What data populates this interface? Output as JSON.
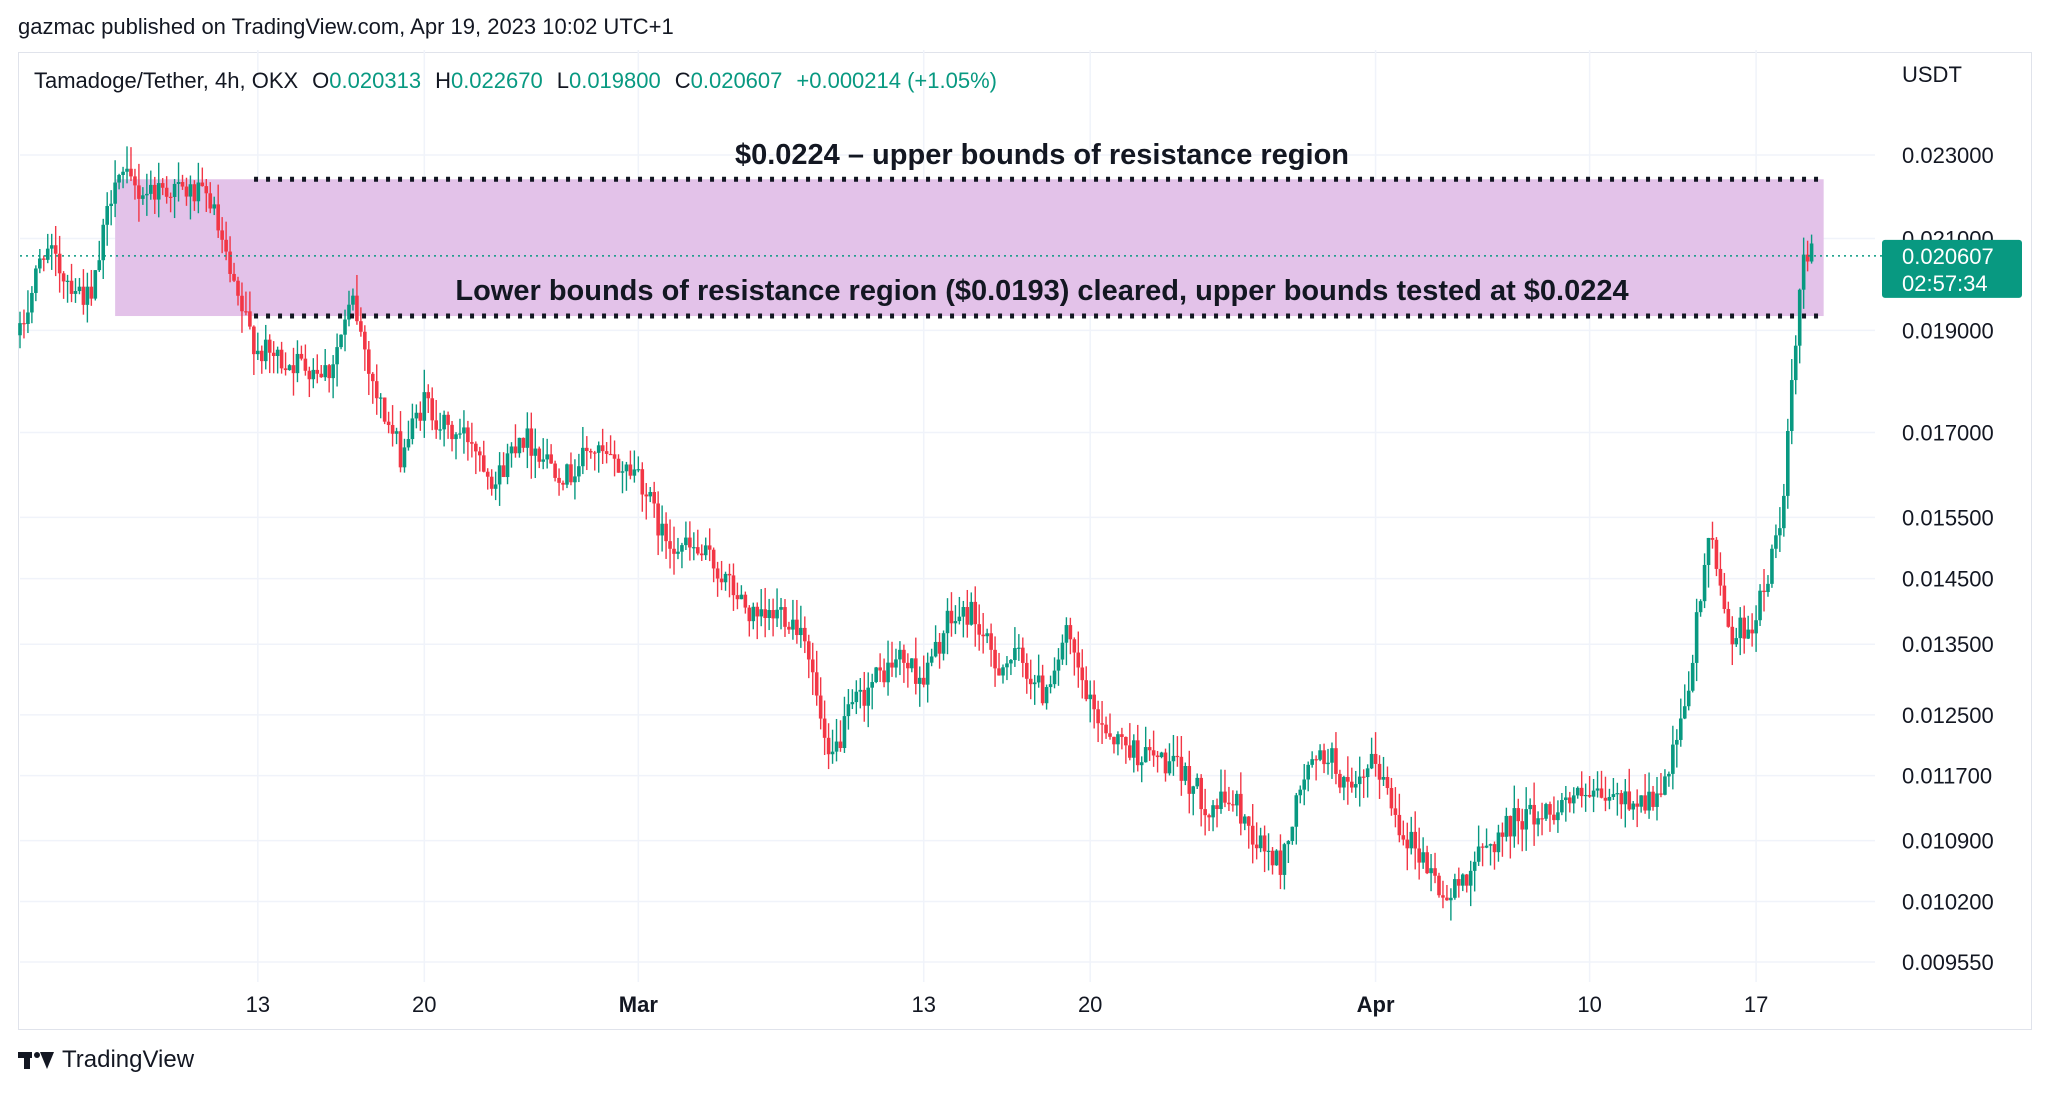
{
  "header": {
    "publisher": "gazmac published on TradingView.com, Apr 19, 2023 10:02 UTC+1"
  },
  "legend": {
    "symbol": "Tamadoge/Tether, 4h, OKX",
    "open_label": "O",
    "open": "0.020313",
    "high_label": "H",
    "high": "0.022670",
    "low_label": "L",
    "low": "0.019800",
    "close_label": "C",
    "close": "0.020607",
    "change": "+0.000214 (+1.05%)"
  },
  "price_axis": {
    "currency": "USDT",
    "last_price": "0.020607",
    "countdown": "02:57:34"
  },
  "annotations": {
    "upper": "$0.0224 – upper bounds of resistance region",
    "lower": "Lower bounds of resistance region ($0.0193) cleared, upper bounds tested at $0.0224"
  },
  "footer": {
    "brand": "TradingView"
  },
  "colors": {
    "up": "#089981",
    "down": "#f23645",
    "zone": "#e1bfe8",
    "grid": "#f0f3fa",
    "text": "#131722",
    "badge": "#089981"
  },
  "chart_data": {
    "type": "candlestick",
    "title": "Tamadoge/Tether, 4h, OKX",
    "ylabel": "USDT",
    "y_scale": "log",
    "ylim": [
      0.0093,
      0.0243
    ],
    "y_ticks": [
      "0.023000",
      "0.021000",
      "0.019000",
      "0.017000",
      "0.015500",
      "0.014500",
      "0.013500",
      "0.012500",
      "0.011700",
      "0.010900",
      "0.010200",
      "0.009550"
    ],
    "x_ticks": [
      {
        "label": "13",
        "date": "2023-02-13",
        "bold": false
      },
      {
        "label": "20",
        "date": "2023-02-20",
        "bold": false
      },
      {
        "label": "Mar",
        "date": "2023-03-01",
        "bold": true
      },
      {
        "label": "13",
        "date": "2023-03-13",
        "bold": false
      },
      {
        "label": "20",
        "date": "2023-03-20",
        "bold": false
      },
      {
        "label": "Apr",
        "date": "2023-04-01",
        "bold": true
      },
      {
        "label": "10",
        "date": "2023-04-10",
        "bold": false
      },
      {
        "label": "17",
        "date": "2023-04-17",
        "bold": false
      }
    ],
    "x_range": [
      "2023-02-03",
      "2023-04-22"
    ],
    "resistance_zone": {
      "upper": 0.0224,
      "lower": 0.0193,
      "start": "2023-02-07",
      "end": "2023-04-19"
    },
    "dotted_levels": [
      {
        "price": 0.0224,
        "start": "2023-02-12",
        "end": "2023-04-19"
      },
      {
        "price": 0.0193,
        "start": "2023-02-12",
        "end": "2023-04-19"
      }
    ],
    "last_price": 0.020607,
    "price_path": [
      [
        "2023-02-03",
        0.0189
      ],
      [
        "2023-02-04",
        0.0208
      ],
      [
        "2023-02-05",
        0.0201
      ],
      [
        "2023-02-06",
        0.0196
      ],
      [
        "2023-02-07",
        0.0226
      ],
      [
        "2023-02-08",
        0.0221
      ],
      [
        "2023-02-09",
        0.0222
      ],
      [
        "2023-02-10",
        0.0221
      ],
      [
        "2023-02-11",
        0.0219
      ],
      [
        "2023-02-12",
        0.0198
      ],
      [
        "2023-02-13",
        0.0186
      ],
      [
        "2023-02-14",
        0.0184
      ],
      [
        "2023-02-15",
        0.0183
      ],
      [
        "2023-02-16",
        0.0182
      ],
      [
        "2023-02-17",
        0.0196
      ],
      [
        "2023-02-18",
        0.0177
      ],
      [
        "2023-02-19",
        0.0166
      ],
      [
        "2023-02-20",
        0.0176
      ],
      [
        "2023-02-21",
        0.017
      ],
      [
        "2023-02-22",
        0.0169
      ],
      [
        "2023-02-23",
        0.0161
      ],
      [
        "2023-02-24",
        0.017
      ],
      [
        "2023-02-25",
        0.0166
      ],
      [
        "2023-02-26",
        0.0162
      ],
      [
        "2023-02-27",
        0.0167
      ],
      [
        "2023-02-28",
        0.0164
      ],
      [
        "2023-03-01",
        0.0163
      ],
      [
        "2023-03-02",
        0.0152
      ],
      [
        "2023-03-03",
        0.015
      ],
      [
        "2023-03-04",
        0.0148
      ],
      [
        "2023-03-05",
        0.0143
      ],
      [
        "2023-03-06",
        0.0138
      ],
      [
        "2023-03-07",
        0.014
      ],
      [
        "2023-03-08",
        0.0137
      ],
      [
        "2023-03-09",
        0.0118
      ],
      [
        "2023-03-10",
        0.0126
      ],
      [
        "2023-03-11",
        0.013
      ],
      [
        "2023-03-12",
        0.0133
      ],
      [
        "2023-03-13",
        0.013
      ],
      [
        "2023-03-14",
        0.0138
      ],
      [
        "2023-03-15",
        0.014
      ],
      [
        "2023-03-16",
        0.0132
      ],
      [
        "2023-03-17",
        0.0133
      ],
      [
        "2023-03-18",
        0.0128
      ],
      [
        "2023-03-19",
        0.0136
      ],
      [
        "2023-03-20",
        0.0126
      ],
      [
        "2023-03-21",
        0.0122
      ],
      [
        "2023-03-22",
        0.012
      ],
      [
        "2023-03-23",
        0.0119
      ],
      [
        "2023-03-24",
        0.0117
      ],
      [
        "2023-03-25",
        0.0113
      ],
      [
        "2023-03-26",
        0.0114
      ],
      [
        "2023-03-27",
        0.0109
      ],
      [
        "2023-03-28",
        0.0106
      ],
      [
        "2023-03-29",
        0.0117
      ],
      [
        "2023-03-30",
        0.012
      ],
      [
        "2023-03-31",
        0.0114
      ],
      [
        "2023-04-01",
        0.0119
      ],
      [
        "2023-04-02",
        0.0111
      ],
      [
        "2023-04-03",
        0.0107
      ],
      [
        "2023-04-04",
        0.0102
      ],
      [
        "2023-04-05",
        0.0106
      ],
      [
        "2023-04-06",
        0.0109
      ],
      [
        "2023-04-07",
        0.0112
      ],
      [
        "2023-04-08",
        0.0112
      ],
      [
        "2023-04-09",
        0.0114
      ],
      [
        "2023-04-10",
        0.0114
      ],
      [
        "2023-04-11",
        0.0114
      ],
      [
        "2023-04-12",
        0.0114
      ],
      [
        "2023-04-13",
        0.0114
      ],
      [
        "2023-04-14",
        0.0125
      ],
      [
        "2023-04-15",
        0.0152
      ],
      [
        "2023-04-16",
        0.0136
      ],
      [
        "2023-04-17",
        0.0139
      ],
      [
        "2023-04-18",
        0.0153
      ],
      [
        "2023-04-19",
        0.0206
      ]
    ]
  }
}
